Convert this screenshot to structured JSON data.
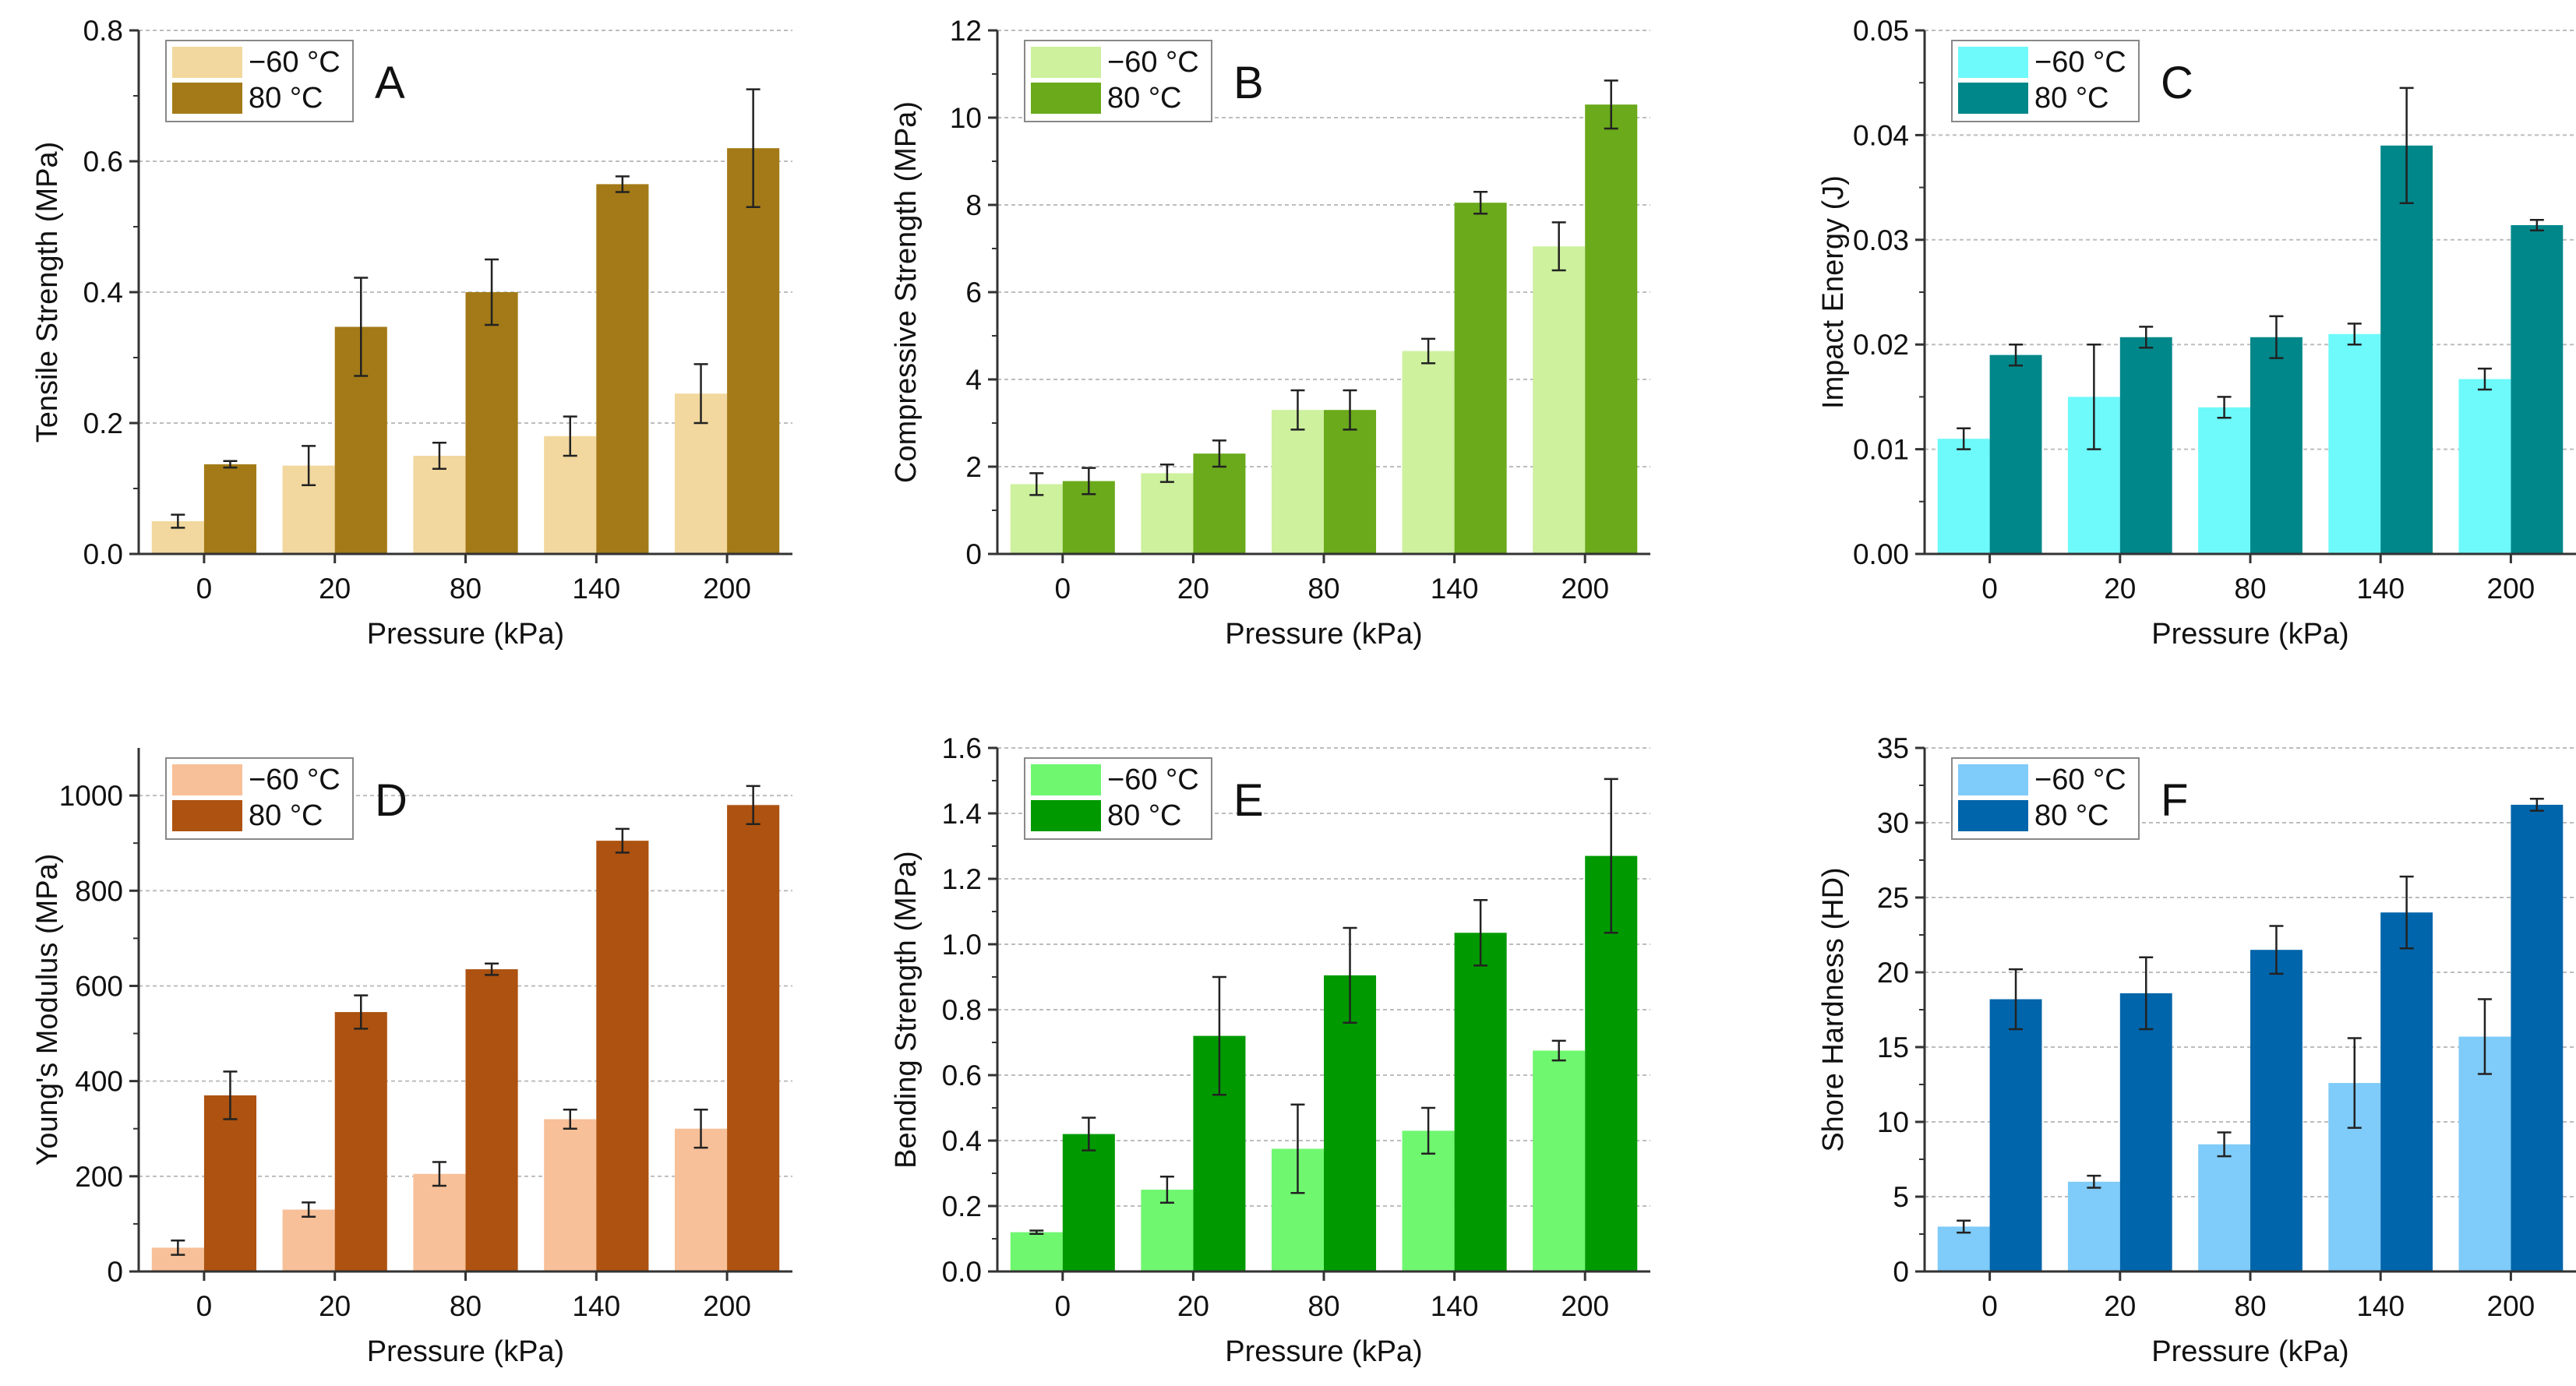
{
  "figure": {
    "xlabel": "Pressure (kPa)",
    "legend": [
      "−60 °C",
      "80 °C"
    ]
  },
  "chart_data": [
    {
      "type": "bar",
      "panel": "A",
      "title": "",
      "xlabel": "Pressure (kPa)",
      "ylabel": "Tensile Strength (MPa)",
      "categories": [
        "0",
        "20",
        "80",
        "140",
        "200"
      ],
      "ylim": [
        0,
        0.8
      ],
      "yticks": [
        "0.0",
        "0.2",
        "0.4",
        "0.6",
        "0.8"
      ],
      "colors": [
        "#f2d89e",
        "#a37a17"
      ],
      "series": [
        {
          "name": "−60 °C",
          "values": [
            0.05,
            0.135,
            0.15,
            0.18,
            0.245
          ],
          "errors": [
            0.01,
            0.03,
            0.02,
            0.03,
            0.045
          ]
        },
        {
          "name": "80 °C",
          "values": [
            0.137,
            0.347,
            0.4,
            0.565,
            0.62
          ],
          "errors": [
            0.005,
            0.075,
            0.05,
            0.012,
            0.09
          ]
        }
      ]
    },
    {
      "type": "bar",
      "panel": "B",
      "title": "",
      "xlabel": "Pressure (kPa)",
      "ylabel": "Compressive Strength (MPa)",
      "categories": [
        "0",
        "20",
        "80",
        "140",
        "200"
      ],
      "ylim": [
        0,
        12
      ],
      "yticks": [
        "0",
        "2",
        "4",
        "6",
        "8",
        "10",
        "12"
      ],
      "colors": [
        "#cdf19d",
        "#6aaa1b"
      ],
      "series": [
        {
          "name": "−60 °C",
          "values": [
            1.6,
            1.85,
            3.3,
            4.65,
            7.05
          ],
          "errors": [
            0.25,
            0.2,
            0.45,
            0.28,
            0.55
          ]
        },
        {
          "name": "80 °C",
          "values": [
            1.67,
            2.3,
            3.3,
            8.05,
            10.3
          ],
          "errors": [
            0.3,
            0.3,
            0.45,
            0.25,
            0.55
          ]
        }
      ]
    },
    {
      "type": "bar",
      "panel": "C",
      "title": "",
      "xlabel": "Pressure (kPa)",
      "ylabel": "Impact Energy (J)",
      "categories": [
        "0",
        "20",
        "80",
        "140",
        "200"
      ],
      "ylim": [
        0,
        0.05
      ],
      "yticks": [
        "0.00",
        "0.01",
        "0.02",
        "0.03",
        "0.04",
        "0.05"
      ],
      "colors": [
        "#6ef9fb",
        "#00878a"
      ],
      "series": [
        {
          "name": "−60 °C",
          "values": [
            0.011,
            0.015,
            0.014,
            0.021,
            0.0167
          ],
          "errors": [
            0.001,
            0.005,
            0.001,
            0.001,
            0.001
          ]
        },
        {
          "name": "80 °C",
          "values": [
            0.019,
            0.0207,
            0.0207,
            0.039,
            0.0314
          ],
          "errors": [
            0.001,
            0.001,
            0.002,
            0.0055,
            0.0005
          ]
        }
      ]
    },
    {
      "type": "bar",
      "panel": "D",
      "title": "",
      "xlabel": "Pressure (kPa)",
      "ylabel": "Young's Modulus (MPa)",
      "categories": [
        "0",
        "20",
        "80",
        "140",
        "200"
      ],
      "ylim": [
        0,
        1100
      ],
      "yticks": [
        "0",
        "200",
        "400",
        "600",
        "800",
        "1000"
      ],
      "colors": [
        "#f7c098",
        "#ad5210"
      ],
      "series": [
        {
          "name": "−60 °C",
          "values": [
            50,
            130,
            205,
            320,
            300
          ],
          "errors": [
            15,
            15,
            25,
            20,
            40
          ]
        },
        {
          "name": "80 °C",
          "values": [
            370,
            545,
            635,
            905,
            980
          ],
          "errors": [
            50,
            35,
            12,
            25,
            40
          ]
        }
      ]
    },
    {
      "type": "bar",
      "panel": "E",
      "title": "",
      "xlabel": "Pressure (kPa)",
      "ylabel": "Bending Strength (MPa)",
      "categories": [
        "0",
        "20",
        "80",
        "140",
        "200"
      ],
      "ylim": [
        0,
        1.6
      ],
      "yticks": [
        "0.0",
        "0.2",
        "0.4",
        "0.6",
        "0.8",
        "1.0",
        "1.2",
        "1.4",
        "1.6"
      ],
      "colors": [
        "#6ff770",
        "#009a00"
      ],
      "series": [
        {
          "name": "−60 °C",
          "values": [
            0.12,
            0.25,
            0.375,
            0.43,
            0.675
          ],
          "errors": [
            0.005,
            0.04,
            0.135,
            0.07,
            0.03
          ]
        },
        {
          "name": "80 °C",
          "values": [
            0.42,
            0.72,
            0.905,
            1.035,
            1.27
          ],
          "errors": [
            0.05,
            0.18,
            0.145,
            0.1,
            0.235
          ]
        }
      ]
    },
    {
      "type": "bar",
      "panel": "F",
      "title": "",
      "xlabel": "Pressure (kPa)",
      "ylabel": "Shore Hardness (HD)",
      "categories": [
        "0",
        "20",
        "80",
        "140",
        "200"
      ],
      "ylim": [
        0,
        35
      ],
      "yticks": [
        "0",
        "5",
        "10",
        "15",
        "20",
        "25",
        "30",
        "35"
      ],
      "colors": [
        "#7fcbf9",
        "#0065aa"
      ],
      "series": [
        {
          "name": "−60 °C",
          "values": [
            3,
            6,
            8.5,
            12.6,
            15.7
          ],
          "errors": [
            0.4,
            0.4,
            0.8,
            3,
            2.5
          ]
        },
        {
          "name": "80 °C",
          "values": [
            18.2,
            18.6,
            21.5,
            24,
            31.2
          ],
          "errors": [
            2,
            2.4,
            1.6,
            2.4,
            0.4
          ]
        }
      ]
    }
  ]
}
